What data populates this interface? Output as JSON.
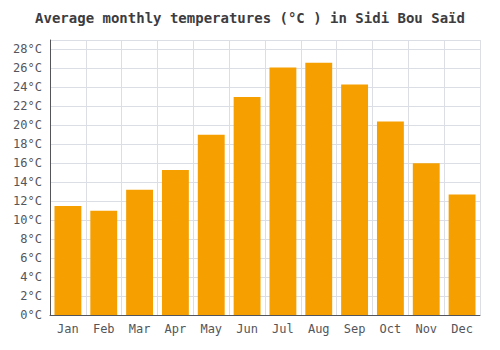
{
  "chart_data": {
    "type": "bar",
    "title": "Average monthly temperatures (°C ) in Sidi Bou Saïd",
    "categories": [
      "Jan",
      "Feb",
      "Mar",
      "Apr",
      "May",
      "Jun",
      "Jul",
      "Aug",
      "Sep",
      "Oct",
      "Nov",
      "Dec"
    ],
    "values": [
      11.5,
      11.0,
      13.2,
      15.3,
      19.0,
      23.0,
      26.1,
      26.6,
      24.3,
      20.4,
      16.0,
      12.7
    ],
    "color": "#F5A000",
    "ylim": [
      0,
      29
    ],
    "yticks": [
      {
        "value": 0,
        "label": "0°C"
      },
      {
        "value": 2,
        "label": "2°C"
      },
      {
        "value": 4,
        "label": "4°C"
      },
      {
        "value": 6,
        "label": "6°C"
      },
      {
        "value": 8,
        "label": "8°C"
      },
      {
        "value": 10,
        "label": "10°C"
      },
      {
        "value": 12,
        "label": "12°C"
      },
      {
        "value": 14,
        "label": "14°C"
      },
      {
        "value": 16,
        "label": "16°C"
      },
      {
        "value": 18,
        "label": "18°C"
      },
      {
        "value": 20,
        "label": "20°C"
      },
      {
        "value": 22,
        "label": "22°C"
      },
      {
        "value": 24,
        "label": "24°C"
      },
      {
        "value": 26,
        "label": "26°C"
      },
      {
        "value": 28,
        "label": "28°C"
      }
    ],
    "grid": true
  }
}
